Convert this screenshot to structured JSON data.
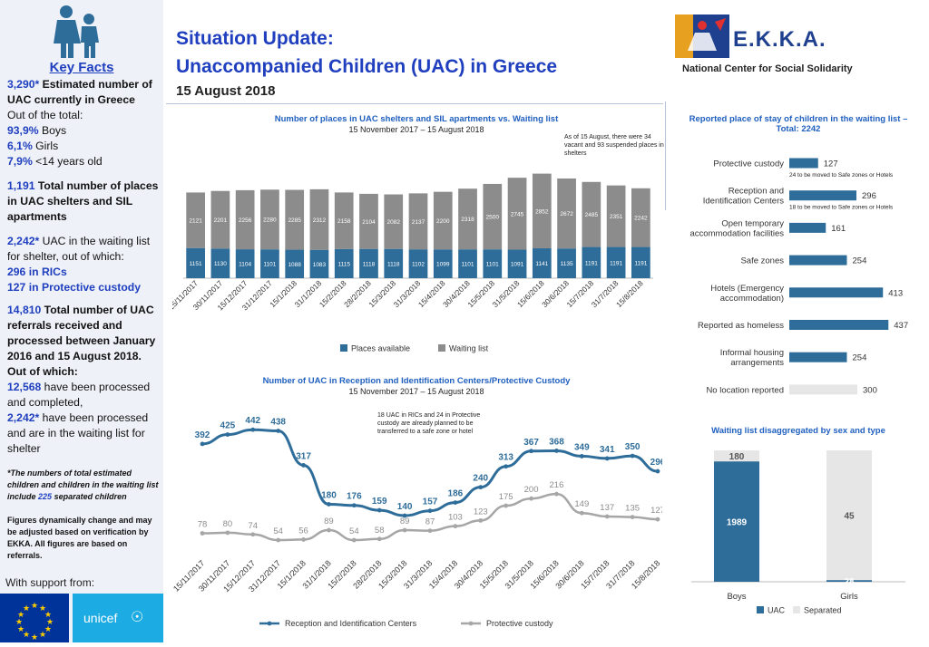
{
  "header": {
    "title_line1": "Situation Update:",
    "title_line2": "Unaccompanied Children (UAC) in Greece",
    "date": "15 August 2018",
    "org_name": "E.K.K.A.",
    "org_subtitle": "National Center for Social Solidarity"
  },
  "sidebar": {
    "key_facts_title": "Key Facts",
    "fact1_value": "3,290*",
    "fact1_text": "Estimated number of UAC currently in Greece",
    "fact1_sub": "Out of the total:",
    "boys_value": "93,9%",
    "boys_label": "Boys",
    "girls_value": "6,1%",
    "girls_label": "Girls",
    "under14_value": "7,9%",
    "under14_label": "<14 years old",
    "fact2_value": "1,191",
    "fact2_text": "Total number of places in UAC shelters and SIL apartments",
    "fact3_value": "2,242*",
    "fact3_text": "UAC in the waiting list for shelter, out of which:",
    "rics_value": "296",
    "rics_label": "in RICs",
    "pc_value": "127",
    "pc_label": "in Protective custody",
    "fact4_value": "14,810",
    "fact4_text": "Total number of UAC referrals received and processed between January 2016 and 15 August 2018. Out of which:",
    "completed_value": "12,568",
    "completed_text": "have been processed and completed,",
    "waiting_value": "2,242*",
    "waiting_text": "have been processed and are in the waiting list for shelter",
    "footnote_pre": "*The numbers of total estimated children and children in the waiting list include",
    "footnote_num": "225",
    "footnote_post": "separated children",
    "disclaimer": "Figures dynamically change and may be adjusted based on verification by EKKA. All figures are based on referrals.",
    "support_label": "With support from:",
    "unicef_label": "unicef"
  },
  "colors": {
    "blue": "#2e6d9a",
    "grey": "#8c8c8c",
    "light_grey": "#e6e6e6",
    "title_blue": "#1f3fbf"
  },
  "chart_data": [
    {
      "type": "bar",
      "stacked": true,
      "title": "Number of places in UAC shelters and SIL apartments vs. Waiting list",
      "subtitle": "15 November 2017 – 15 August 2018",
      "annotation": "As of 15 August, there were 34 vacant and 93 suspended places in shelters",
      "categories": [
        "15/11/2017",
        "30/11/2017",
        "15/12/2017",
        "31/12/2017",
        "15/1/2018",
        "31/1/2018",
        "15/2/2018",
        "28/2/2018",
        "15/3/2018",
        "31/3/2018",
        "15/4/2018",
        "30/4/2018",
        "15/5/2018",
        "31/5/2018",
        "15/6/2018",
        "30/6/2018",
        "15/7/2018",
        "31/7/2018",
        "15/8/2018"
      ],
      "series": [
        {
          "name": "Places available",
          "color": "#2e6d9a",
          "values": [
            1151,
            1130,
            1104,
            1101,
            1088,
            1083,
            1115,
            1118,
            1118,
            1102,
            1099,
            1101,
            1101,
            1091,
            1141,
            1135,
            1191,
            1191,
            1191
          ]
        },
        {
          "name": "Waiting list",
          "color": "#8c8c8c",
          "values": [
            2121,
            2201,
            2256,
            2280,
            2285,
            2312,
            2158,
            2104,
            2082,
            2137,
            2200,
            2318,
            2500,
            2745,
            2852,
            2672,
            2485,
            2351,
            2242
          ]
        }
      ],
      "legend": "bottom"
    },
    {
      "type": "line",
      "title": "Number of UAC in Reception and Identification Centers/Protective Custody",
      "subtitle": "15 November 2017 – 15 August 2018",
      "annotation": "18 UAC in RICs and 24 in Protective custody are already planned to be transferred to a safe zone or hotel",
      "categories": [
        "15/11/2017",
        "30/11/2017",
        "15/12/2017",
        "31/12/2017",
        "15/1/2018",
        "31/1/2018",
        "15/2/2018",
        "28/2/2018",
        "15/3/2018",
        "31/3/2018",
        "15/4/2018",
        "30/4/2018",
        "15/5/2018",
        "31/5/2018",
        "15/6/2018",
        "30/6/2018",
        "15/7/2018",
        "31/7/2018",
        "15/8/2018"
      ],
      "series": [
        {
          "name": "Reception and Identification Centers",
          "color": "#2e6d9a",
          "values": [
            392,
            425,
            442,
            438,
            317,
            180,
            176,
            159,
            140,
            157,
            186,
            240,
            313,
            367,
            368,
            349,
            341,
            350,
            296
          ]
        },
        {
          "name": "Protective custody",
          "color": "#a6a6a6",
          "values": [
            78,
            80,
            74,
            54,
            56,
            89,
            54,
            58,
            89,
            87,
            103,
            123,
            175,
            200,
            216,
            149,
            137,
            135,
            127
          ]
        }
      ],
      "legend": "bottom"
    },
    {
      "type": "bar",
      "orientation": "horizontal",
      "title": "Reported place of stay of children in the waiting list – Total: 2242",
      "categories": [
        "Protective custody",
        "Reception and Identification Centers",
        "Open temporary accommodation facilities",
        "Safe zones",
        "Hotels (Emergency accommodation)",
        "Reported as homeless",
        "Informal housing arrangements",
        "No location reported"
      ],
      "values": [
        127,
        296,
        161,
        254,
        413,
        437,
        254,
        300
      ],
      "notes": [
        "24 to be moved to Safe zones or Hotels",
        "18 to be moved to Safe zones or Hotels",
        "",
        "",
        "",
        "",
        "",
        ""
      ]
    },
    {
      "type": "bar",
      "stacked": true,
      "title": "Waiting list disaggregated by sex and type",
      "categories": [
        "Boys",
        "Girls"
      ],
      "series": [
        {
          "name": "UAC",
          "color": "#2e6d9a",
          "values": [
            1989,
            28
          ]
        },
        {
          "name": "Separated",
          "color": "#e6e6e6",
          "values": [
            180,
            45
          ]
        }
      ],
      "legend": "bottom"
    }
  ]
}
